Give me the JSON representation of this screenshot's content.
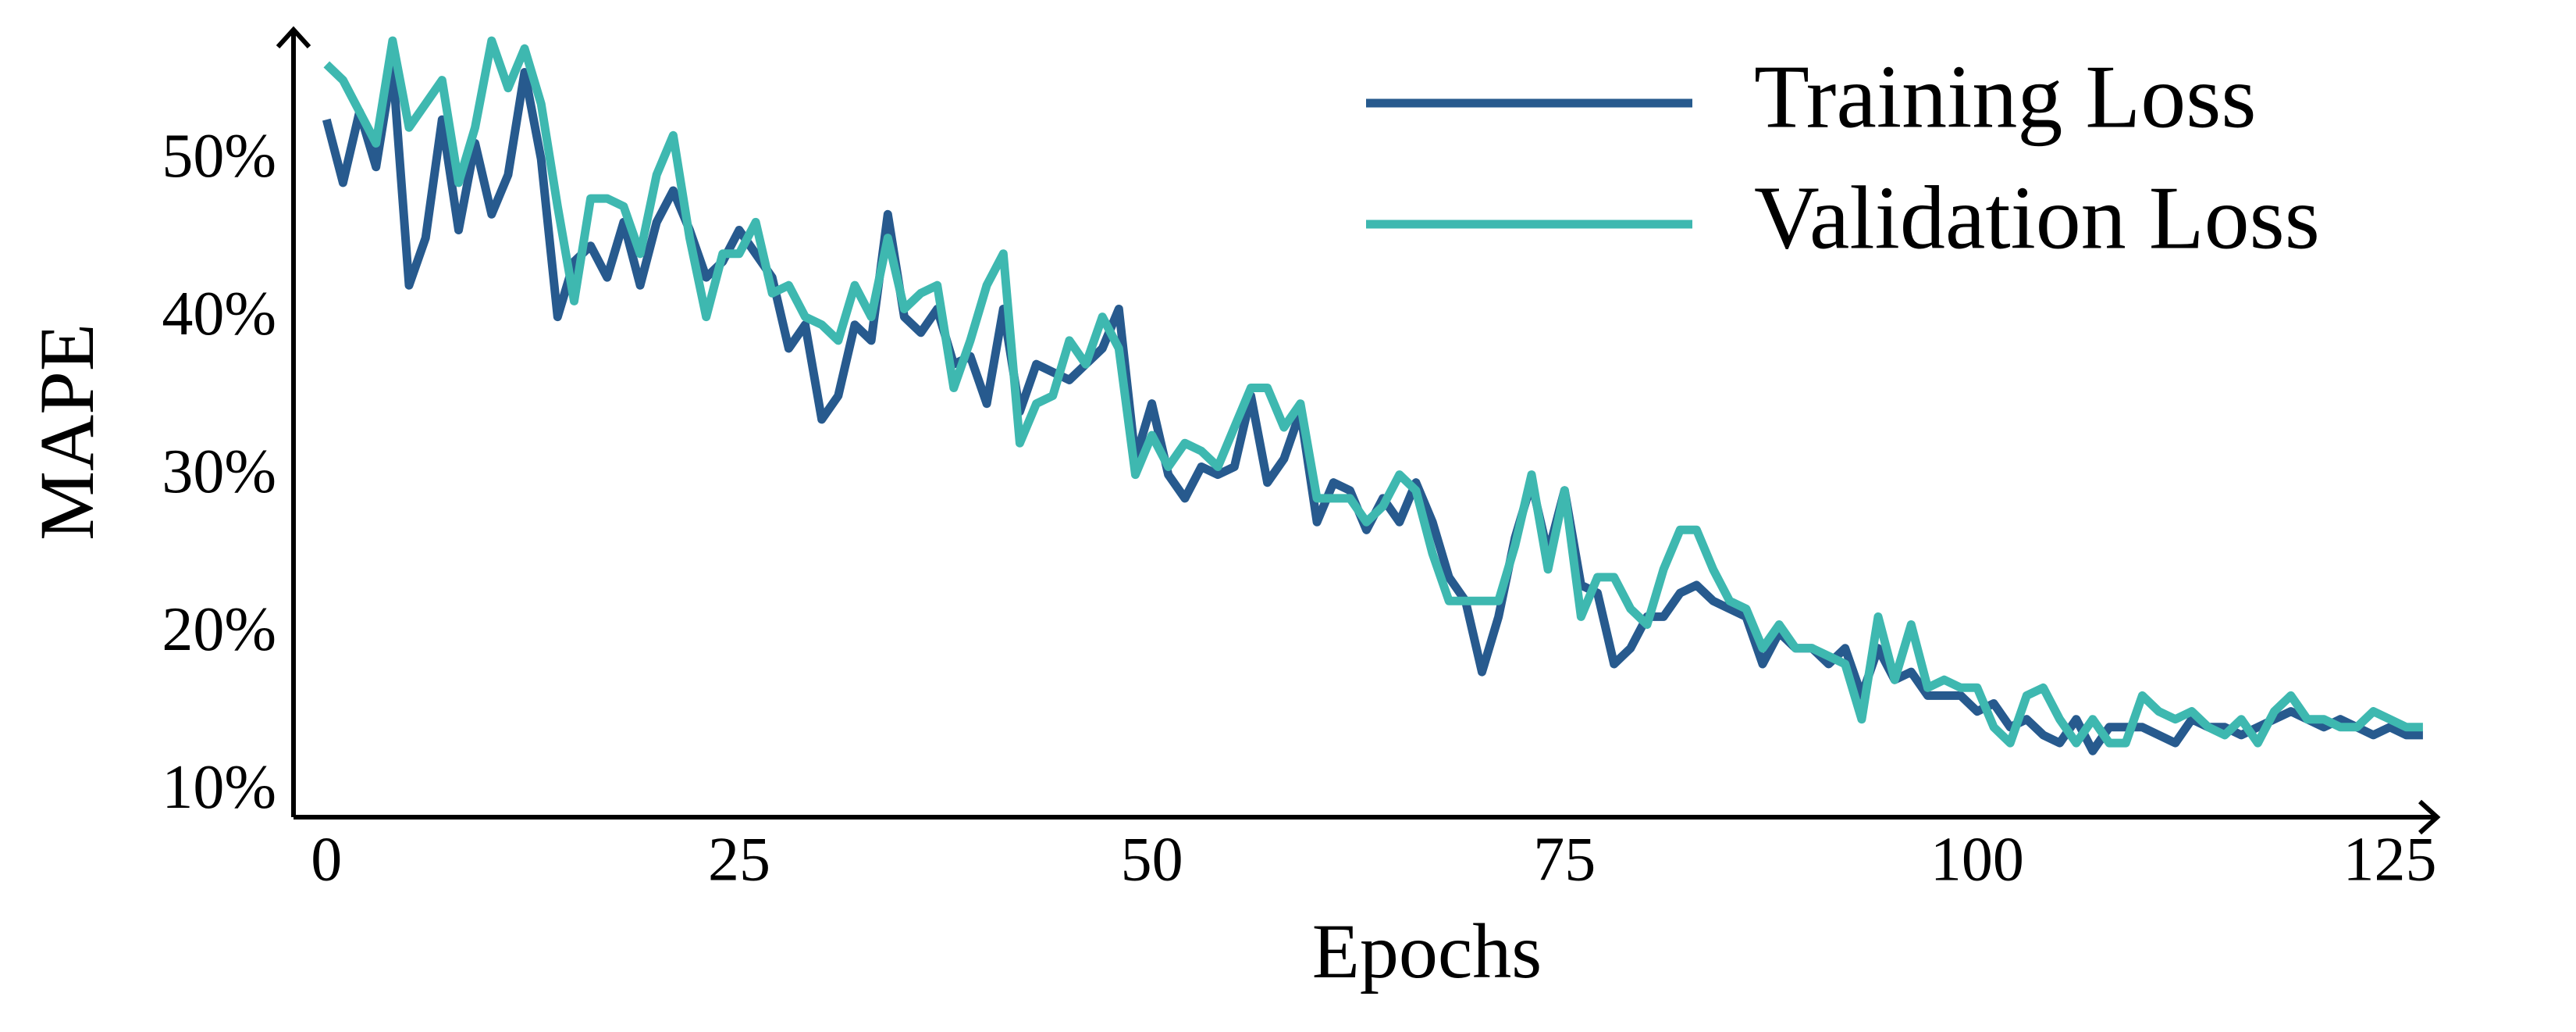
{
  "chart_data": {
    "type": "line",
    "x_label": "Epochs",
    "y_label": "MAPE",
    "x": [
      0,
      1,
      2,
      3,
      4,
      5,
      6,
      7,
      8,
      9,
      10,
      11,
      12,
      13,
      14,
      15,
      16,
      17,
      18,
      19,
      20,
      21,
      22,
      23,
      24,
      25,
      26,
      27,
      28,
      29,
      30,
      31,
      32,
      33,
      34,
      35,
      36,
      37,
      38,
      39,
      40,
      41,
      42,
      43,
      44,
      45,
      46,
      47,
      48,
      49,
      50,
      51,
      52,
      53,
      54,
      55,
      56,
      57,
      58,
      59,
      60,
      61,
      62,
      63,
      64,
      65,
      66,
      67,
      68,
      69,
      70,
      71,
      72,
      73,
      74,
      75,
      76,
      77,
      78,
      79,
      80,
      81,
      82,
      83,
      84,
      85,
      86,
      87,
      88,
      89,
      90,
      91,
      92,
      93,
      94,
      95,
      96,
      97,
      98,
      99,
      100,
      101,
      102,
      103,
      104,
      105,
      106,
      107,
      108,
      109,
      110,
      111,
      112,
      113,
      114,
      115,
      116,
      117,
      118,
      119,
      120,
      121,
      122,
      123,
      124,
      125,
      126,
      127
    ],
    "series": [
      {
        "name": "Training Loss",
        "color": "#275a8e",
        "values": [
          52.5,
          48.5,
          53,
          49.5,
          56,
          42,
          45,
          52.5,
          45.5,
          51,
          46.5,
          49,
          55.5,
          50,
          40,
          43.5,
          44.5,
          42.5,
          46,
          42,
          46,
          48,
          45.5,
          42.5,
          43.5,
          45.5,
          44,
          42.5,
          38,
          39.5,
          33.5,
          35,
          39.5,
          38.5,
          46.5,
          40,
          39,
          40.5,
          37,
          37.5,
          34.5,
          40.5,
          34,
          37,
          36.5,
          36,
          37,
          38,
          40.5,
          31,
          34.5,
          30,
          28.5,
          30.5,
          30,
          30.5,
          35,
          29.5,
          31,
          34,
          27,
          29.5,
          29,
          26.5,
          28.5,
          27,
          29.5,
          27,
          23.5,
          22,
          17.5,
          21,
          26,
          29.5,
          25,
          29,
          23,
          22.5,
          18,
          19,
          21,
          21,
          22.5,
          23,
          22,
          21.5,
          21,
          18,
          20,
          19,
          19,
          18,
          19,
          16,
          19,
          17,
          17.5,
          16,
          16,
          16,
          15,
          15.5,
          14,
          14.5,
          13.5,
          13,
          14.5,
          12.5,
          14,
          14,
          14,
          13.5,
          13,
          14.5,
          14,
          14,
          13.5,
          14,
          14.5,
          15,
          14.5,
          14,
          14.5,
          14,
          13.5,
          14,
          13.5,
          13.5
        ]
      },
      {
        "name": "Validation Loss",
        "color": "#3eb8b0",
        "values": [
          56,
          55,
          53,
          51,
          57.5,
          52,
          53.5,
          55,
          48.5,
          52,
          57.5,
          54.5,
          57,
          53.5,
          47,
          41,
          47.5,
          47.5,
          47,
          44,
          49,
          51.5,
          45,
          40,
          44,
          44,
          46,
          41.5,
          42,
          40,
          39.5,
          38.5,
          42,
          40,
          45,
          40.5,
          41.5,
          42,
          35.5,
          38.5,
          42,
          44,
          32,
          34.5,
          35,
          38.5,
          37,
          40,
          38,
          30,
          32.5,
          30.5,
          32,
          31.5,
          30.5,
          33,
          35.5,
          35.5,
          33,
          34.5,
          28.5,
          28.5,
          28.5,
          27,
          28,
          30,
          29,
          25,
          22,
          22,
          22,
          22,
          25.5,
          30,
          24,
          29,
          21,
          23.5,
          23.5,
          21.5,
          20.5,
          24,
          26.5,
          26.5,
          24,
          22,
          21.5,
          19,
          20.5,
          19,
          19,
          18.5,
          18,
          14.5,
          21,
          17,
          20.5,
          16.5,
          17,
          16.5,
          16.5,
          14,
          13,
          16,
          16.5,
          14.5,
          13,
          14.5,
          13,
          13,
          16,
          15,
          14.5,
          15,
          14,
          13.5,
          14.5,
          13,
          15,
          16,
          14.5,
          14.5,
          14,
          14,
          15,
          14.5,
          14,
          14
        ]
      }
    ],
    "xlim": [
      -2,
      128
    ],
    "ylim": [
      8.3,
      57.8
    ],
    "xticks": [
      0,
      25,
      50,
      75,
      100,
      125
    ],
    "yticks": [
      {
        "value": 10,
        "label": "10%"
      },
      {
        "value": 20,
        "label": "20%"
      },
      {
        "value": 30,
        "label": "30%"
      },
      {
        "value": 40,
        "label": "40%"
      },
      {
        "value": 50,
        "label": "50%"
      }
    ],
    "grid": false,
    "legend_position": "upper right"
  }
}
